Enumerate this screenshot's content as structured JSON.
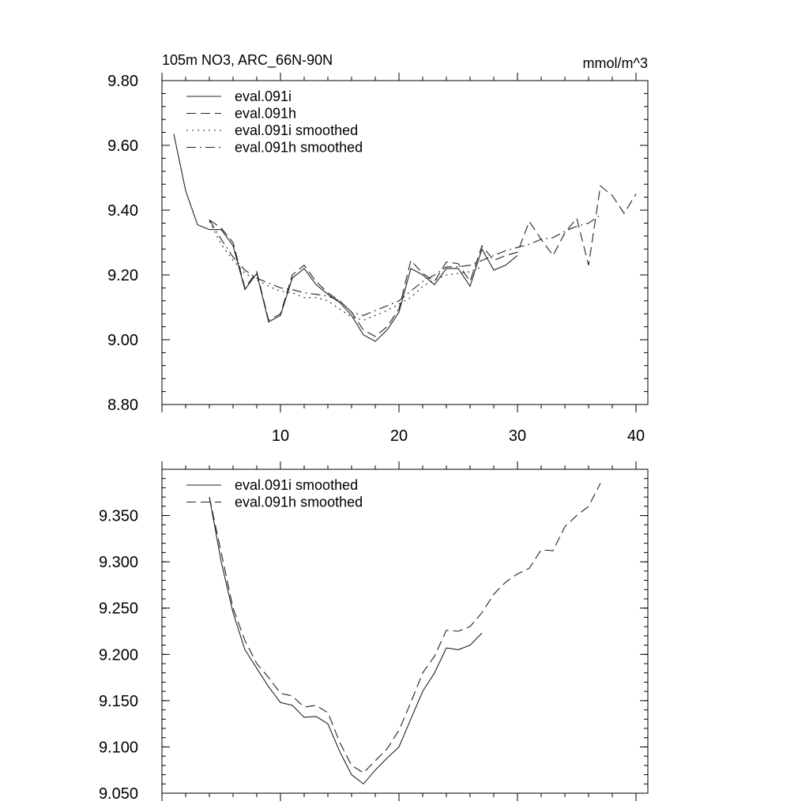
{
  "chart_data": [
    {
      "type": "line",
      "title": "105m NO3, ARC_66N-90N",
      "units": "mmol/m^3",
      "xlim": [
        0,
        41
      ],
      "ylim": [
        8.8,
        9.8
      ],
      "x_ticks": [
        10,
        20,
        30,
        40
      ],
      "y_ticks": [
        "8.80",
        "9.00",
        "9.20",
        "9.40",
        "9.60",
        "9.80"
      ],
      "y_tick_values": [
        8.8,
        9.0,
        9.2,
        9.4,
        9.6,
        9.8
      ],
      "grid": false,
      "legend_position": "top-left",
      "series": [
        {
          "name": "eval.091i",
          "dash": "solid",
          "x": [
            1,
            2,
            3,
            4,
            5,
            6,
            7,
            8,
            9,
            10,
            11,
            12,
            13,
            14,
            15,
            16,
            17,
            18,
            19,
            20,
            21,
            22,
            23,
            24,
            25,
            26,
            27,
            28,
            29,
            30
          ],
          "y": [
            9.635,
            9.46,
            9.355,
            9.34,
            9.34,
            9.29,
            9.155,
            9.205,
            9.055,
            9.075,
            9.19,
            9.22,
            9.17,
            9.14,
            9.115,
            9.075,
            9.015,
            8.995,
            9.03,
            9.085,
            9.22,
            9.2,
            9.17,
            9.22,
            9.22,
            9.165,
            9.28,
            9.215,
            9.23,
            9.26
          ]
        },
        {
          "name": "eval.091h",
          "dash": "long-dash",
          "x": [
            4,
            5,
            6,
            7,
            8,
            9,
            10,
            11,
            12,
            13,
            14,
            15,
            16,
            17,
            18,
            19,
            20,
            21,
            22,
            23,
            24,
            25,
            26,
            27,
            28,
            29,
            30,
            31,
            32,
            33,
            34,
            35,
            36,
            37,
            38,
            39,
            40
          ],
          "y": [
            9.37,
            9.345,
            9.3,
            9.16,
            9.21,
            9.06,
            9.08,
            9.2,
            9.23,
            9.18,
            9.145,
            9.12,
            9.085,
            9.03,
            9.01,
            9.04,
            9.095,
            9.245,
            9.205,
            9.18,
            9.24,
            9.235,
            9.18,
            9.29,
            9.245,
            9.26,
            9.27,
            9.365,
            9.31,
            9.26,
            9.33,
            9.375,
            9.23,
            9.475,
            9.445,
            9.39,
            9.45
          ]
        },
        {
          "name": "eval.091i smoothed",
          "dash": "dotted",
          "x": [
            4,
            5,
            6,
            7,
            8,
            9,
            10,
            11,
            12,
            13,
            14,
            15,
            16,
            17,
            18,
            19,
            20,
            21,
            22,
            23,
            24,
            25,
            26,
            27
          ],
          "y": [
            9.365,
            9.295,
            9.245,
            9.205,
            9.185,
            9.165,
            9.15,
            9.145,
            9.13,
            9.13,
            9.12,
            9.095,
            9.07,
            9.06,
            9.075,
            9.09,
            9.11,
            9.13,
            9.165,
            9.185,
            9.2,
            9.205,
            9.21,
            9.225
          ]
        },
        {
          "name": "eval.091h smoothed",
          "dash": "dash-dot",
          "x": [
            4,
            5,
            6,
            7,
            8,
            9,
            10,
            11,
            12,
            13,
            14,
            15,
            16,
            17,
            18,
            19,
            20,
            21,
            22,
            23,
            24,
            25,
            26,
            27,
            28,
            29,
            30,
            31,
            32,
            33,
            34,
            35,
            36,
            37
          ],
          "y": [
            9.37,
            9.31,
            9.255,
            9.215,
            9.19,
            9.175,
            9.16,
            9.155,
            9.145,
            9.14,
            9.135,
            9.12,
            9.085,
            9.075,
            9.09,
            9.105,
            9.12,
            9.15,
            9.18,
            9.2,
            9.225,
            9.225,
            9.23,
            9.245,
            9.26,
            9.275,
            9.285,
            9.295,
            9.31,
            9.315,
            9.335,
            9.35,
            9.36,
            9.385
          ]
        }
      ]
    },
    {
      "type": "line",
      "xlim": [
        0,
        41
      ],
      "ylim": [
        9.05,
        9.4
      ],
      "x_ticks": [
        10,
        20,
        30,
        40
      ],
      "y_ticks": [
        "9.050",
        "9.100",
        "9.150",
        "9.200",
        "9.250",
        "9.300",
        "9.350"
      ],
      "y_tick_values": [
        9.05,
        9.1,
        9.15,
        9.2,
        9.25,
        9.3,
        9.35
      ],
      "grid": false,
      "legend_position": "top-left",
      "series": [
        {
          "name": "eval.091i smoothed",
          "dash": "solid",
          "x": [
            4,
            5,
            6,
            7,
            8,
            9,
            10,
            11,
            12,
            13,
            14,
            15,
            16,
            17,
            18,
            19,
            20,
            21,
            22,
            23,
            24,
            25,
            26,
            27
          ],
          "y": [
            9.37,
            9.3,
            9.245,
            9.205,
            9.185,
            9.165,
            9.148,
            9.145,
            9.132,
            9.133,
            9.125,
            9.095,
            9.07,
            9.06,
            9.075,
            9.088,
            9.1,
            9.13,
            9.16,
            9.18,
            9.207,
            9.205,
            9.21,
            9.223
          ]
        },
        {
          "name": "eval.091h smoothed",
          "dash": "long-dash",
          "x": [
            4,
            5,
            6,
            7,
            8,
            9,
            10,
            11,
            12,
            13,
            14,
            15,
            16,
            17,
            18,
            19,
            20,
            21,
            22,
            23,
            24,
            25,
            26,
            27,
            28,
            29,
            30,
            31,
            32,
            33,
            34,
            35,
            36,
            37
          ],
          "y": [
            9.37,
            9.31,
            9.25,
            9.215,
            9.19,
            9.175,
            9.158,
            9.155,
            9.143,
            9.145,
            9.137,
            9.105,
            9.08,
            9.072,
            9.085,
            9.098,
            9.118,
            9.148,
            9.18,
            9.198,
            9.226,
            9.225,
            9.23,
            9.245,
            9.265,
            9.278,
            9.287,
            9.293,
            9.313,
            9.312,
            9.338,
            9.35,
            9.36,
            9.385
          ]
        }
      ]
    }
  ]
}
